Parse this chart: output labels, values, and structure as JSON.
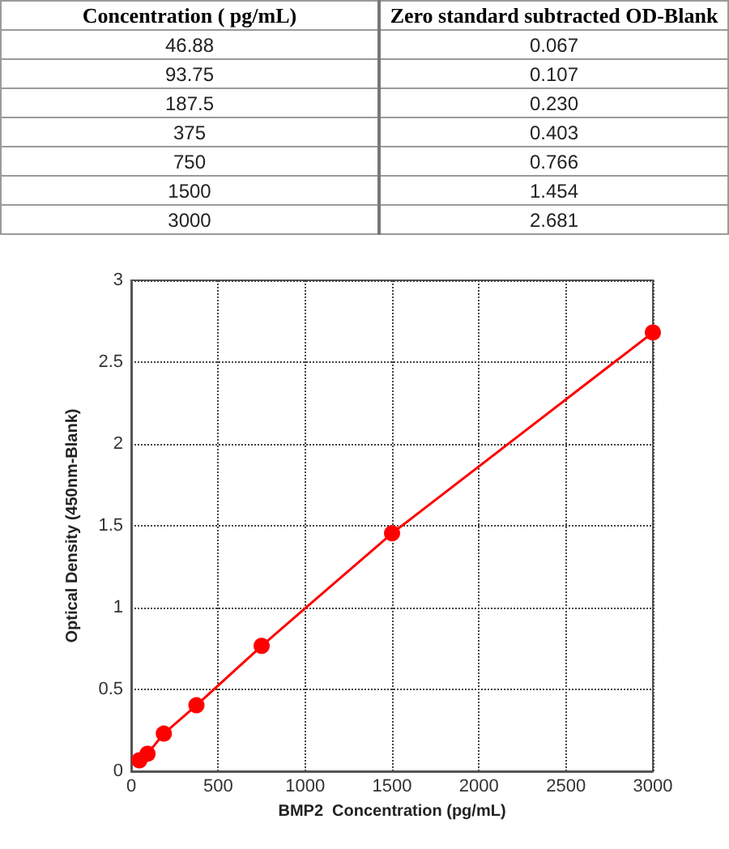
{
  "chart_data": [
    {
      "type": "other",
      "annotations": [
        "Concentration ( pg/mL)",
        "Zero standard subtracted OD-Blank"
      ],
      "categories": [
        "46.88",
        "93.75",
        "187.5",
        "375",
        "750",
        "1500",
        "3000"
      ],
      "value_labels": [
        "0.067",
        "0.107",
        "0.230",
        "0.403",
        "0.766",
        "1.454",
        "2.681"
      ]
    },
    {
      "type": "line",
      "xlabel": "BMP2  Concentration (pg/mL)",
      "ylabel": "Optical Density (450nm-Blank)",
      "x": [
        46.88,
        93.75,
        187.5,
        375,
        750,
        1500,
        3000
      ],
      "values": [
        0.067,
        0.107,
        0.23,
        0.403,
        0.766,
        1.454,
        2.681
      ],
      "color": "#ff0000",
      "xlim": [
        0,
        3000
      ],
      "xticks": [
        0,
        500,
        1000,
        1500,
        2000,
        2500,
        3000
      ],
      "ylim": [
        0,
        3
      ],
      "yticks": [
        0,
        0.5,
        1,
        1.5,
        2,
        2.5,
        3
      ],
      "grid": true,
      "marker": "circle",
      "line_style": "solid"
    }
  ]
}
